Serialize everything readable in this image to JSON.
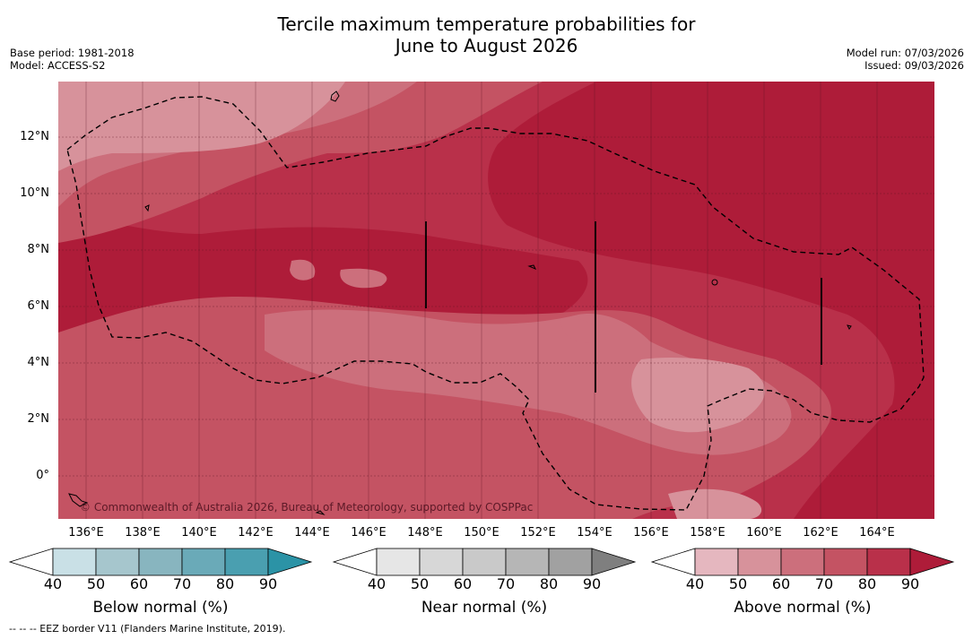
{
  "title": {
    "line1": "Tercile maximum temperature probabilities for",
    "line2": "June to August 2026"
  },
  "meta_left": {
    "base_period": "Base period: 1981-2018",
    "model": "Model: ACCESS-S2"
  },
  "meta_right": {
    "model_run": "Model run: 07/03/2026",
    "issued": "Issued: 09/03/2026"
  },
  "map": {
    "x_ticks": [
      "136°E",
      "138°E",
      "140°E",
      "142°E",
      "144°E",
      "146°E",
      "148°E",
      "150°E",
      "152°E",
      "154°E",
      "156°E",
      "158°E",
      "160°E",
      "162°E",
      "164°E"
    ],
    "y_ticks": [
      "12°N",
      "10°N",
      "8°N",
      "6°N",
      "4°N",
      "2°N",
      "0°"
    ],
    "copyright": "© Commonwealth of Australia 2026, Bureau of Meteorology, supported by COSPPac"
  },
  "colorbars": [
    {
      "label": "Below normal (%)",
      "ticks": [
        "40",
        "50",
        "60",
        "70",
        "80",
        "90"
      ],
      "colors": [
        "#ffffff",
        "#c9e0e6",
        "#a6c6cd",
        "#88b5bf",
        "#6aaab8",
        "#4a9fb0",
        "#2b93a6"
      ]
    },
    {
      "label": "Near normal (%)",
      "ticks": [
        "40",
        "50",
        "60",
        "70",
        "80",
        "90"
      ],
      "colors": [
        "#ffffff",
        "#e6e6e6",
        "#d7d7d7",
        "#c9c9c9",
        "#b6b6b6",
        "#a1a1a1",
        "#7f7f7f"
      ]
    },
    {
      "label": "Above normal (%)",
      "ticks": [
        "40",
        "50",
        "60",
        "70",
        "80",
        "90"
      ],
      "colors": [
        "#ffffff",
        "#e5b7bf",
        "#d7929b",
        "#cc6f7c",
        "#c45363",
        "#b9304a",
        "#ae1c39"
      ]
    }
  ],
  "footnote": "--  --  -- EEZ border V11 (Flanders Marine Institute, 2019)."
}
